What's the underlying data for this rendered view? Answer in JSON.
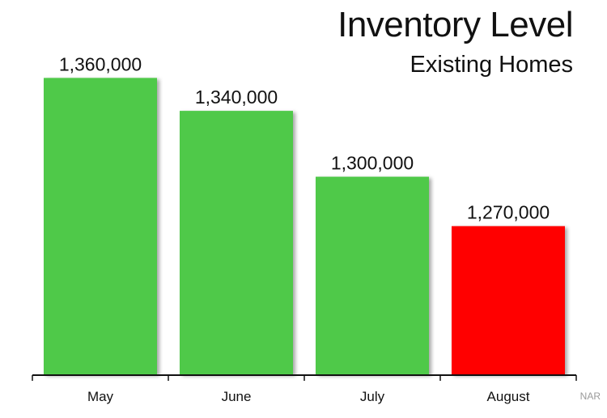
{
  "chart_data": {
    "type": "bar",
    "title": "Inventory Level",
    "subtitle": "Existing Homes",
    "categories": [
      "May",
      "June",
      "July",
      "August"
    ],
    "values": [
      1360000,
      1340000,
      1300000,
      1270000
    ],
    "data_labels": [
      "1,360,000",
      "1,340,000",
      "1,300,000",
      "1,270,000"
    ],
    "bar_colors": [
      "#4fc94a",
      "#4fc94a",
      "#4fc94a",
      "#ff0000"
    ],
    "ylim": [
      1180000,
      1370000
    ],
    "xlabel": "",
    "ylabel": "",
    "grid": false,
    "source": "NAR"
  }
}
